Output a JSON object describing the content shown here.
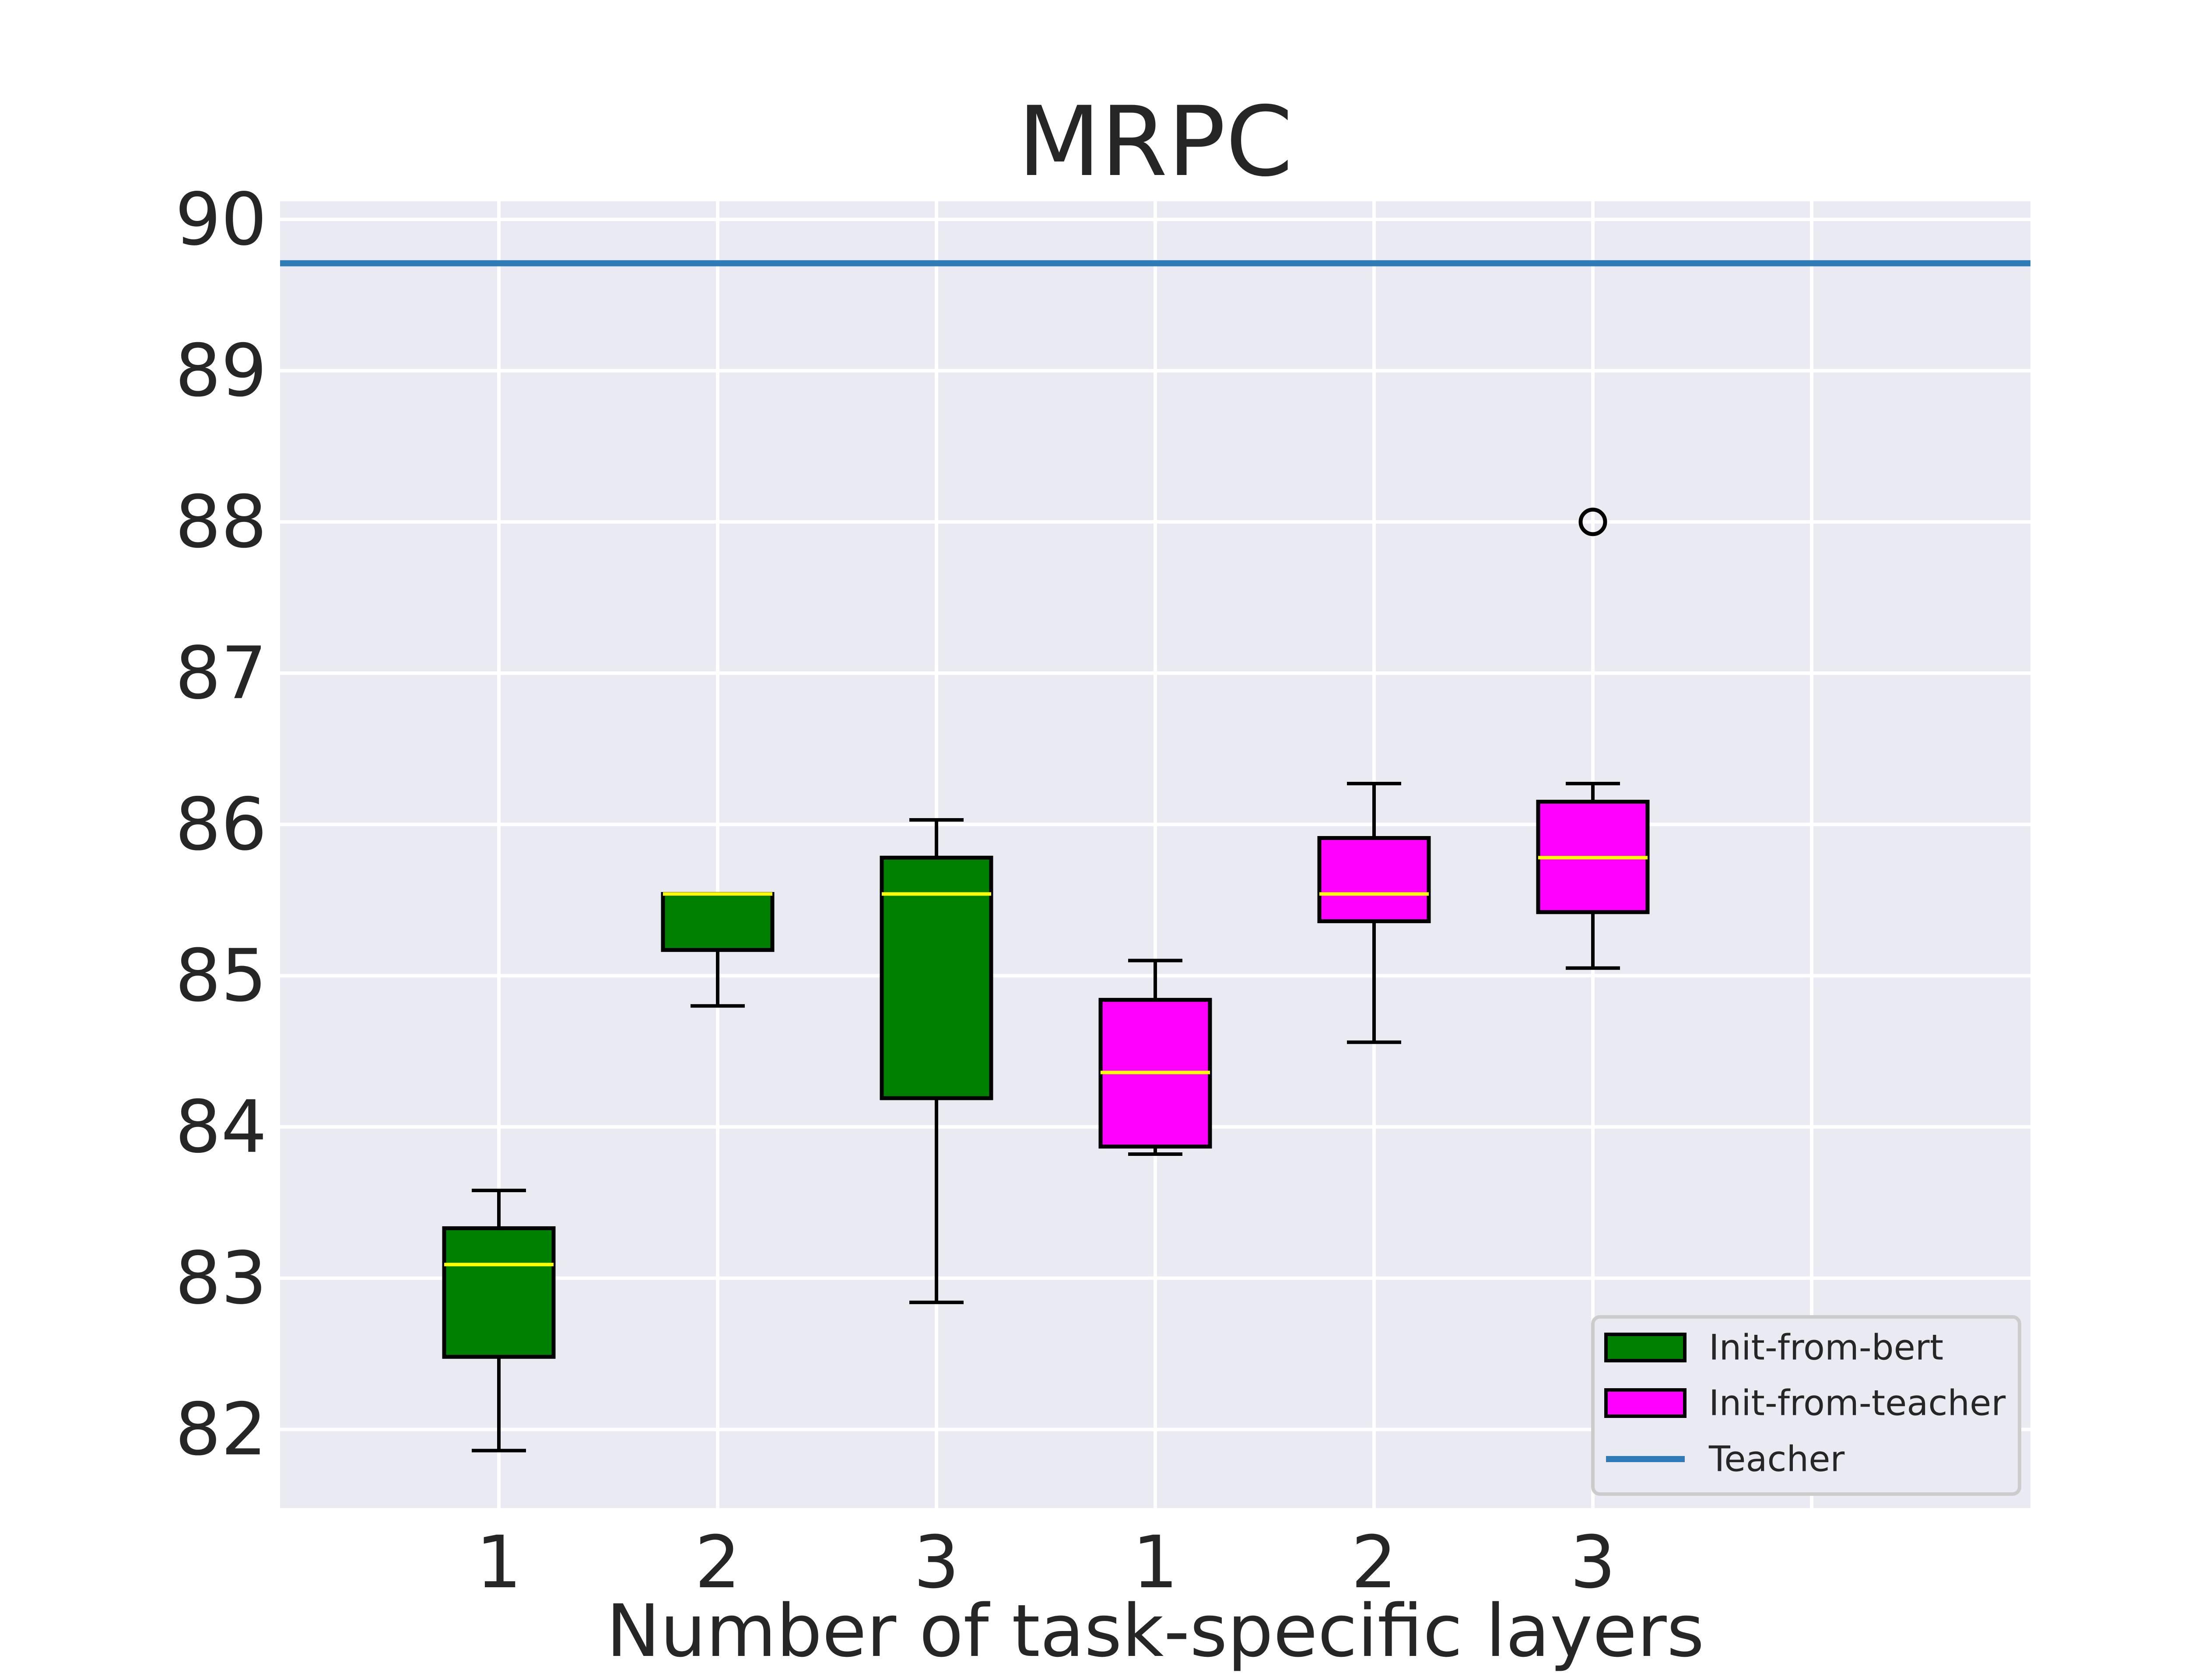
{
  "chart_data": {
    "type": "box",
    "title": "MRPC",
    "xlabel": "Number of task-specific layers",
    "ylabel": "",
    "ylim": [
      81.48,
      90.12
    ],
    "yticks": [
      82,
      83,
      84,
      85,
      86,
      87,
      88,
      89,
      90
    ],
    "xlim": [
      0,
      8
    ],
    "categories": [
      "1",
      "2",
      "3",
      "1",
      "2",
      "3"
    ],
    "grid": true,
    "legend_position": "lower-right",
    "colors": {
      "background": "#eaeaf2",
      "grid": "#ffffff",
      "median": "#ffff00",
      "teacher_line": "#2f7bb8",
      "box_edge": "#000000"
    },
    "series": [
      {
        "name": "Init-from-bert",
        "color": "#008000",
        "boxes": [
          {
            "category": "1",
            "whisker_low": 81.86,
            "q1": 82.48,
            "median": 83.09,
            "q3": 83.33,
            "whisker_high": 83.58,
            "outliers": []
          },
          {
            "category": "2",
            "whisker_low": 84.8,
            "q1": 85.17,
            "median": 85.54,
            "q3": 85.54,
            "whisker_high": 85.54,
            "outliers": []
          },
          {
            "category": "3",
            "whisker_low": 82.84,
            "q1": 84.19,
            "median": 85.54,
            "q3": 85.78,
            "whisker_high": 86.03,
            "outliers": []
          }
        ]
      },
      {
        "name": "Init-from-teacher",
        "color": "#ff00ff",
        "boxes": [
          {
            "category": "1",
            "whisker_low": 83.82,
            "q1": 83.87,
            "median": 84.36,
            "q3": 84.84,
            "whisker_high": 85.1,
            "outliers": []
          },
          {
            "category": "2",
            "whisker_low": 84.56,
            "q1": 85.36,
            "median": 85.54,
            "q3": 85.91,
            "whisker_high": 86.27,
            "outliers": []
          },
          {
            "category": "3",
            "whisker_low": 85.05,
            "q1": 85.42,
            "median": 85.78,
            "q3": 86.15,
            "whisker_high": 86.27,
            "outliers": [
              88.0
            ]
          }
        ]
      }
    ],
    "reference_lines": [
      {
        "name": "Teacher",
        "y": 89.71,
        "color": "#2f7bb8"
      }
    ]
  }
}
